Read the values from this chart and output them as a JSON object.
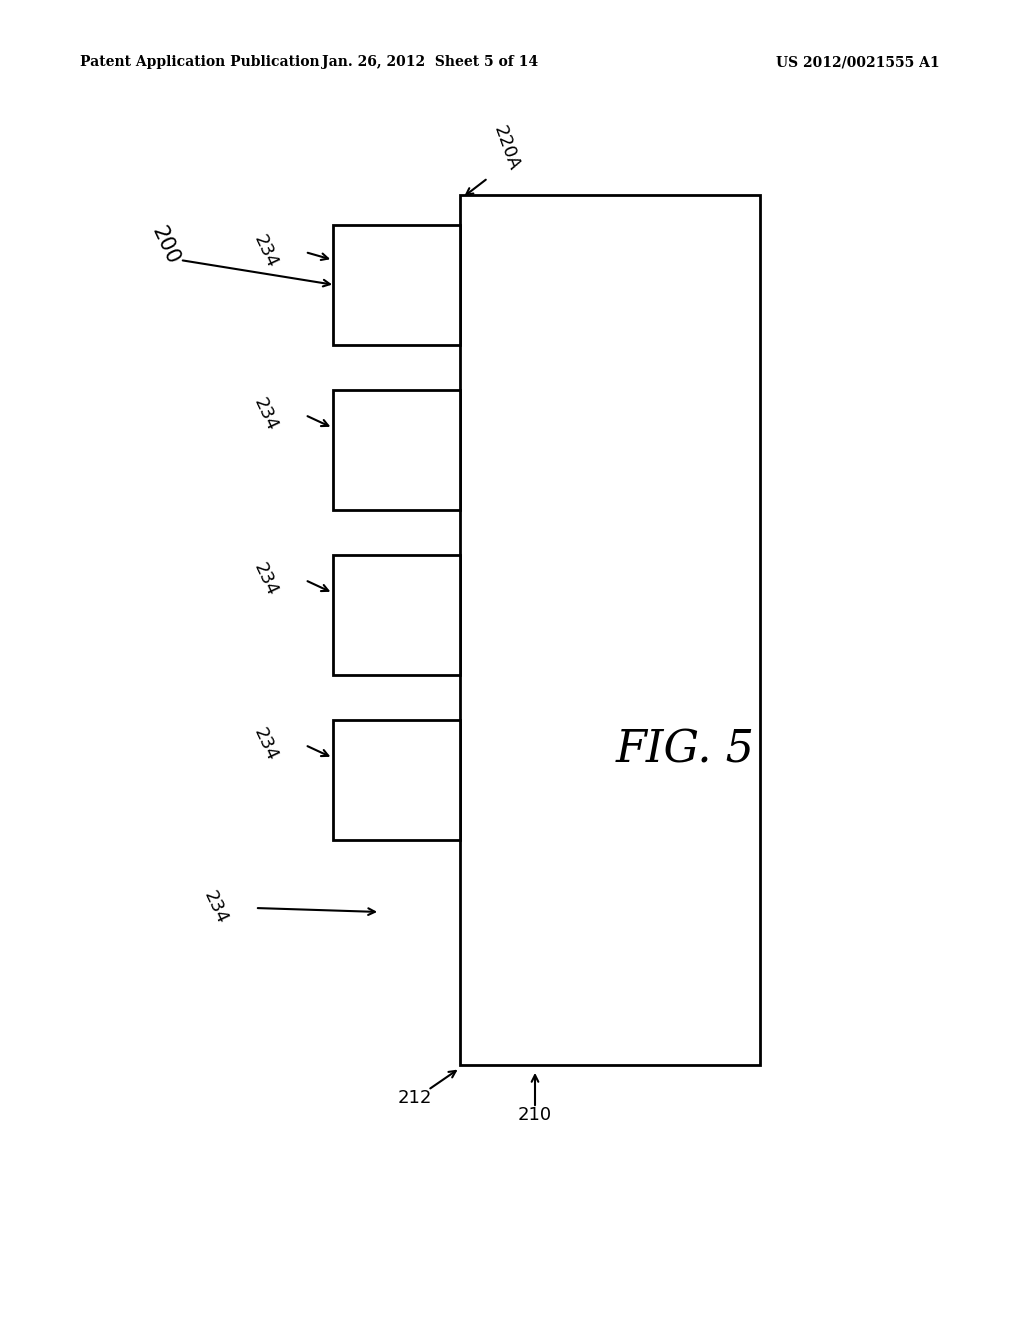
{
  "bg_color": "#ffffff",
  "line_color": "#000000",
  "header_left": "Patent Application Publication",
  "header_center": "Jan. 26, 2012  Sheet 5 of 14",
  "header_right": "US 2012/0021555 A1",
  "fig_label": "FIG. 5",
  "label_200": "200",
  "label_220A": "220A",
  "label_212": "212",
  "label_210": "210",
  "label_234": "234"
}
